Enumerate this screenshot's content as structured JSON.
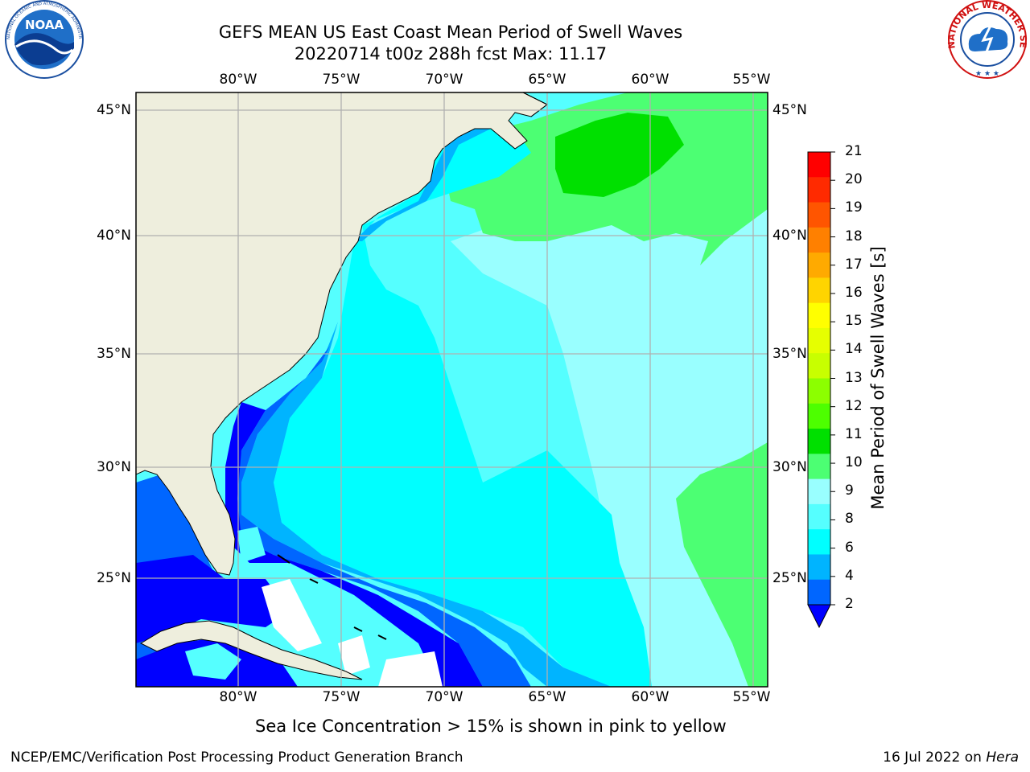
{
  "title": {
    "line1": "GEFS MEAN US East Coast Mean Period of Swell Waves",
    "line2": "20220714 t00z 288h fcst   Max: 11.17"
  },
  "logos": {
    "left": "NOAA",
    "left_ring": "NATIONAL OCEANIC AND ATMOSPHERIC ADMINISTRATION · U.S. DEPARTMENT OF COMMERCE",
    "right_ring": "NATIONAL WEATHER SERVICE"
  },
  "axes": {
    "lon_labels": [
      "80°W",
      "75°W",
      "70°W",
      "65°W",
      "60°W",
      "55°W"
    ],
    "lat_labels": [
      "45°N",
      "40°N",
      "35°N",
      "30°N",
      "25°N"
    ]
  },
  "colorbar": {
    "label": "Mean Period of Swell Waves [s]",
    "ticks": [
      "21",
      "20",
      "19",
      "18",
      "17",
      "16",
      "15",
      "14",
      "13",
      "12",
      "11",
      "10",
      "9",
      "8",
      "6",
      "4",
      "2"
    ],
    "colors": [
      "#ff0000",
      "#ff2a00",
      "#ff5500",
      "#ff8000",
      "#ffaa00",
      "#ffd400",
      "#ffff00",
      "#e6ff00",
      "#c8ff00",
      "#8cff00",
      "#4dff00",
      "#00e000",
      "#4cff73",
      "#99ffff",
      "#55ffff",
      "#00ffff",
      "#00b4ff",
      "#0066ff"
    ],
    "under_color": "#0000ff"
  },
  "map_colors": {
    "land": "#eeeedd",
    "dark_blue": "#0000ff",
    "blue": "#0066ff",
    "sky": "#00b4ff",
    "cyan": "#00ffff",
    "light_cyan": "#55ffff",
    "pale_cyan": "#99ffff",
    "light_green": "#4cff73",
    "green": "#00e000"
  },
  "note": "Sea Ice Concentration > 15% is shown in pink to yellow",
  "footer": {
    "left": "NCEP/EMC/Verification Post Processing Product Generation Branch",
    "right_date": "16 Jul 2022 on ",
    "right_host": "Hera"
  }
}
